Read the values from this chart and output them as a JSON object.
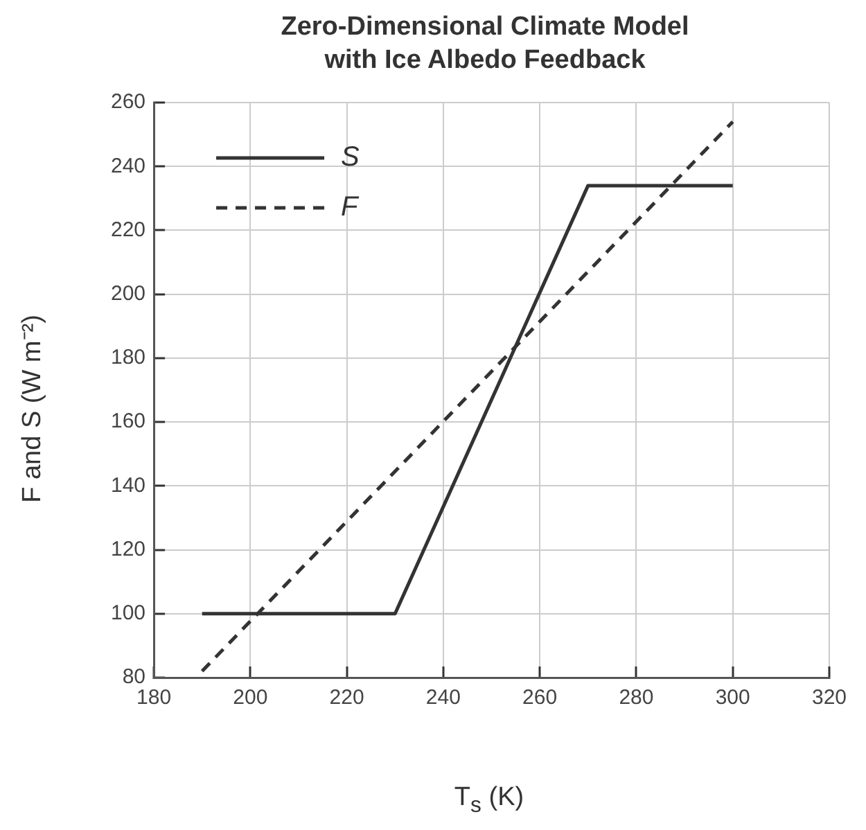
{
  "chart_data": {
    "type": "line",
    "title": "Zero-Dimensional Climate Model with Ice Albedo Feedback",
    "xlabel": "T$_{s}$ (K)",
    "ylabel": "F and S (W m⁻²)",
    "series": [
      {
        "name": "S",
        "color": "#333333",
        "line_style": "solid",
        "x": [
          190,
          230,
          270,
          300
        ],
        "values": [
          100,
          100,
          234,
          234
        ]
      },
      {
        "name": "F",
        "color": "#333333",
        "line_style": "dashed",
        "x": [
          190,
          300
        ],
        "values": [
          82,
          254
        ]
      }
    ],
    "xlim": [
      180,
      320
    ],
    "xticks": [
      180,
      200,
      220,
      240,
      260,
      280,
      300,
      320
    ],
    "ylim": [
      80,
      260
    ],
    "yticks": [
      80,
      100,
      120,
      140,
      160,
      180,
      200,
      220,
      240,
      260
    ],
    "grid": true,
    "legend": "top left",
    "marker": "none"
  }
}
